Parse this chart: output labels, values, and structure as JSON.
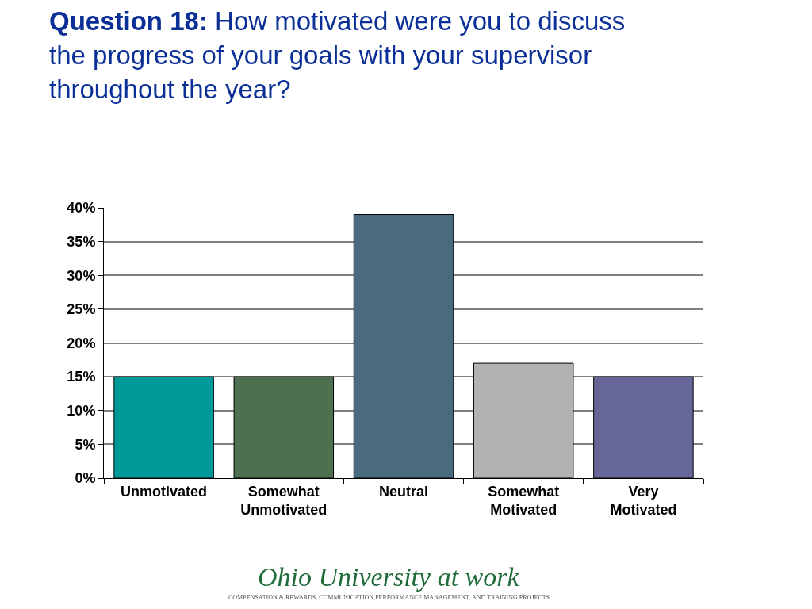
{
  "chart_data": {
    "type": "bar",
    "title": "Question 18: How motivated were you to discuss the progress of your goals with your supervisor throughout the year?",
    "categories": [
      "Unmotivated",
      "Somewhat Unmotivated",
      "Neutral",
      "Somewhat Motivated",
      "Very Motivated"
    ],
    "values": [
      15,
      15,
      39,
      17,
      15
    ],
    "colors": [
      "#009999",
      "#4e7050",
      "#4a6a80",
      "#b2b2b2",
      "#666699"
    ],
    "ylim": [
      0,
      40
    ],
    "yticks": [
      {
        "value": 0,
        "label": "0%"
      },
      {
        "value": 5,
        "label": "5%"
      },
      {
        "value": 10,
        "label": "10%"
      },
      {
        "value": 15,
        "label": "15%"
      },
      {
        "value": 20,
        "label": "20%"
      },
      {
        "value": 25,
        "label": "25%"
      },
      {
        "value": 30,
        "label": "30%"
      },
      {
        "value": 35,
        "label": "35%"
      },
      {
        "value": 40,
        "label": "40%"
      }
    ],
    "grid": "y",
    "annotations": [
      "Ohio University at work",
      "COMPENSATION & REWARDS, COMMUNICATION,PERFORMANCE MANAGEMENT, AND TRAINING PROJECTS"
    ]
  }
}
